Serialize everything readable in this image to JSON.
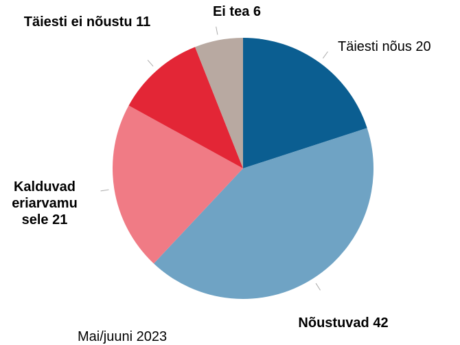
{
  "chart_data": {
    "type": "pie",
    "categories": [
      "Täiesti nõus",
      "Nõustuvad",
      "Kalduvad eriarvamusele",
      "Täiesti ei nõustu",
      "Ei tea"
    ],
    "values": [
      20,
      42,
      21,
      11,
      6
    ],
    "colors": [
      "#0b5e91",
      "#6fa3c4",
      "#f07b85",
      "#e32636",
      "#b8a9a1"
    ],
    "caption": "Mai/juuni 2023"
  }
}
